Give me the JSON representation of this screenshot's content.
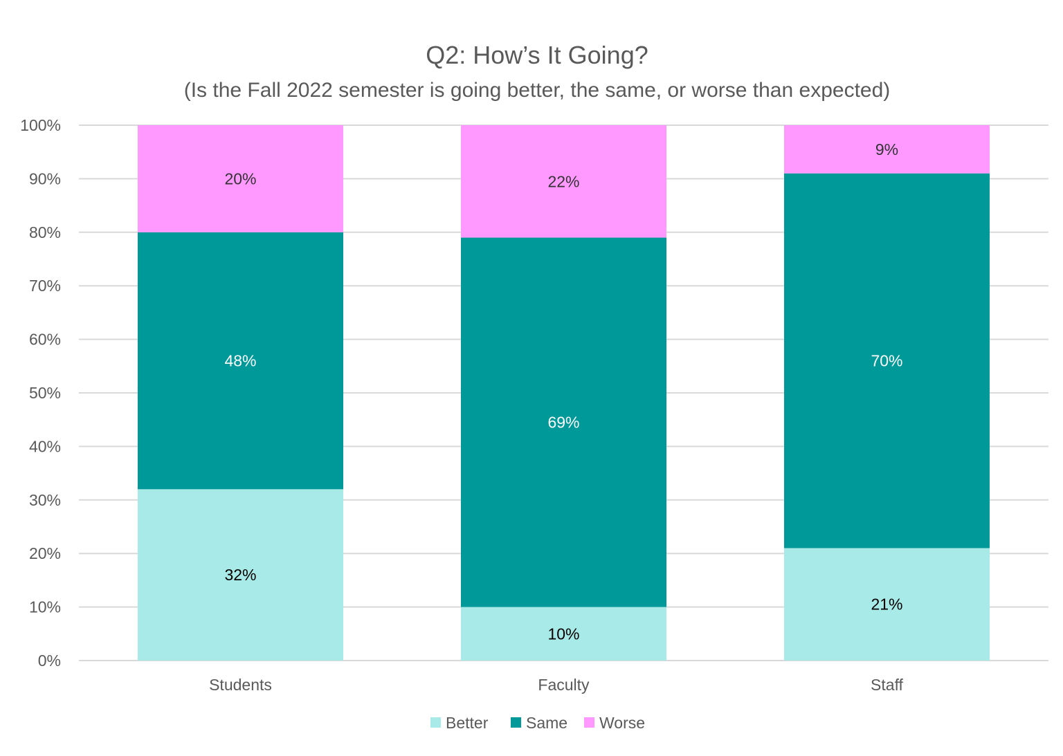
{
  "chart_data": {
    "type": "bar",
    "stacked": true,
    "title": "Q2: How’s It Going?",
    "subtitle": "(Is the Fall 2022 semester is going better, the same, or worse than expected)",
    "xlabel": "",
    "ylabel": "",
    "ylim": [
      0,
      100
    ],
    "yticks": [
      "0%",
      "10%",
      "20%",
      "30%",
      "40%",
      "50%",
      "60%",
      "70%",
      "80%",
      "90%",
      "100%"
    ],
    "categories": [
      "Students",
      "Faculty",
      "Staff"
    ],
    "grid": true,
    "legend_position": "bottom",
    "series": [
      {
        "name": "Better",
        "values": [
          32,
          10,
          21
        ],
        "color": "#A8EAE7",
        "label_color": "#000000"
      },
      {
        "name": "Same",
        "values": [
          48,
          69,
          70
        ],
        "color": "#009999",
        "label_color": "#FFFFFF"
      },
      {
        "name": "Worse",
        "values": [
          20,
          22,
          9
        ],
        "color": "#FF99FF",
        "label_color": "#333333"
      }
    ]
  }
}
